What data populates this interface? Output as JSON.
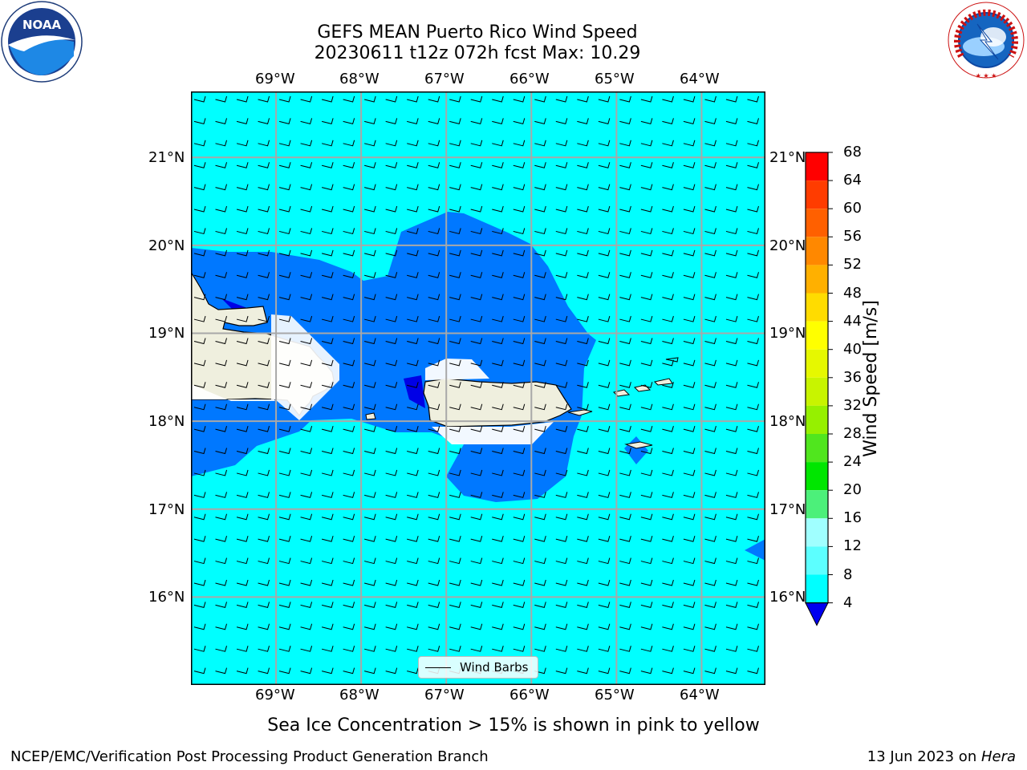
{
  "title": {
    "line1": "GEFS MEAN Puerto Rico Wind Speed",
    "line2": "20230611 t12z 072h fcst   Max: 10.29"
  },
  "logos": {
    "left": {
      "icon": "noaa-logo",
      "text": "NOAA"
    },
    "right": {
      "icon": "nws-logo",
      "text": "NATIONAL WEATHER SERVICE"
    }
  },
  "map": {
    "projection": "PlateCarree",
    "lon_range": [
      -70.0,
      -63.25
    ],
    "lat_range": [
      15.0,
      21.75
    ],
    "lon_ticks": [
      "69°W",
      "68°W",
      "67°W",
      "66°W",
      "65°W",
      "64°W"
    ],
    "lat_ticks": [
      "21°N",
      "20°N",
      "19°N",
      "18°N",
      "17°N",
      "16°N"
    ],
    "gridlines": true,
    "background_field": "8-12 m/s",
    "land_color": "#efefde",
    "legend": {
      "label": "Wind Barbs",
      "placement": "bottom-center"
    },
    "wind_barbs": {
      "direction": "easterly",
      "flag": "half barb (about 5 kt)"
    }
  },
  "colorbar": {
    "label": "Wind Speed [m/s]",
    "levels": [
      "68",
      "64",
      "60",
      "56",
      "52",
      "48",
      "44",
      "40",
      "36",
      "32",
      "28",
      "24",
      "20",
      "16",
      "12",
      "8",
      "4"
    ],
    "colors": [
      "#ff0000",
      "#ff3c00",
      "#ff6000",
      "#ff8800",
      "#ffb000",
      "#ffdc00",
      "#ffff00",
      "#e6f800",
      "#c8f400",
      "#96f000",
      "#50e61e",
      "#00e600",
      "#4cf07a",
      "#a0ffff",
      "#5cffff",
      "#00ffff",
      "#0078ff",
      "#0000f0"
    ],
    "extend": "min"
  },
  "footer": {
    "note": "Sea Ice Concentration > 15% is shown in pink to yellow",
    "credit": "NCEP/EMC/Verification Post Processing Product Generation Branch",
    "date_prefix": "13 Jun 2023 on ",
    "machine": "Hera"
  }
}
